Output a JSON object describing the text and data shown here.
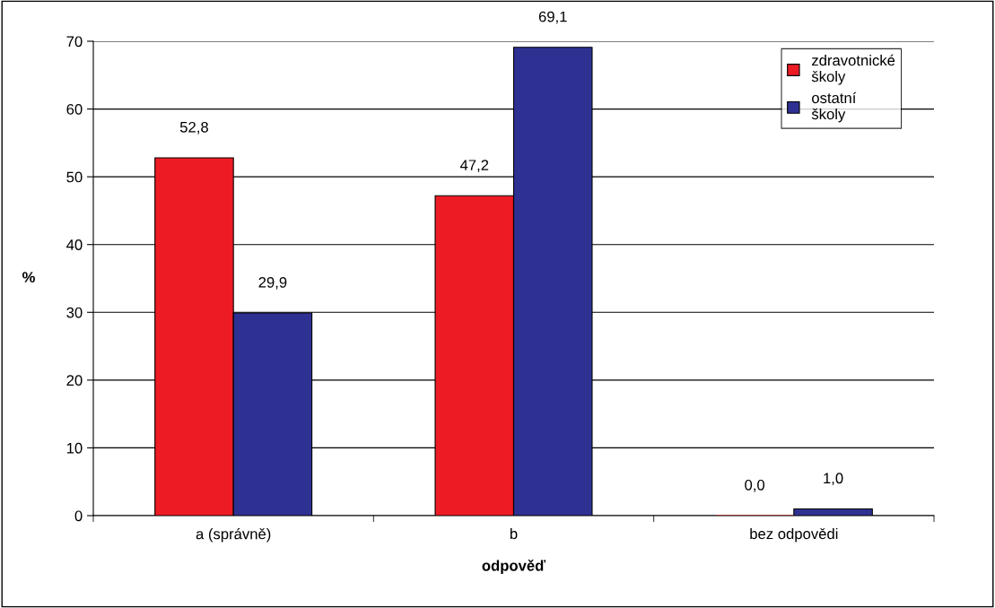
{
  "chart_data": {
    "type": "bar",
    "xlabel": "odpověď",
    "ylabel": "%",
    "categories": [
      "a (správně)",
      "b",
      "bez odpovědi"
    ],
    "series": [
      {
        "name": "zdravotnické školy",
        "color": "#ed1c24",
        "values": [
          52.8,
          47.2,
          0.0
        ],
        "value_labels": [
          "52,8",
          "47,2",
          "0,0"
        ]
      },
      {
        "name": "ostatní školy",
        "color": "#2e3192",
        "values": [
          29.9,
          69.1,
          1.0
        ],
        "value_labels": [
          "29,9",
          "69,1",
          "1,0"
        ]
      }
    ],
    "ylim": [
      0,
      70
    ],
    "yticks": [
      0,
      10,
      20,
      30,
      40,
      50,
      60,
      70
    ],
    "grid": "y",
    "legend": "top right"
  }
}
